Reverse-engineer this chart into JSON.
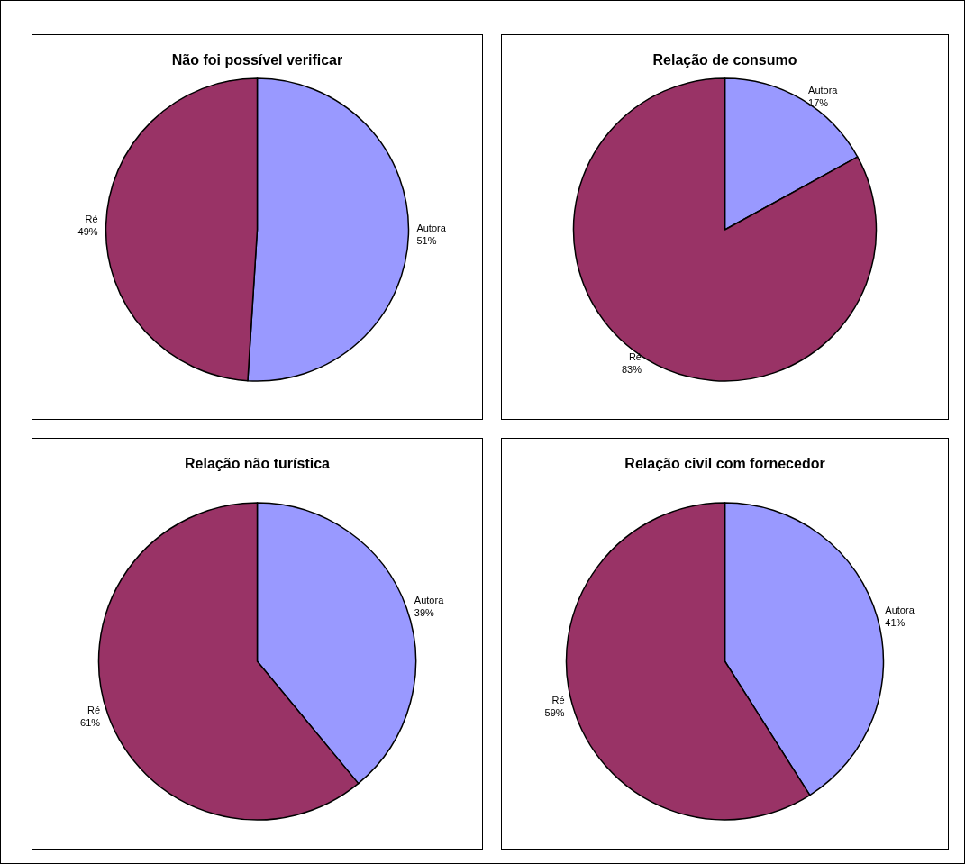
{
  "chart_data": [
    {
      "type": "pie",
      "title": "Não foi possível verificar",
      "categories": [
        "Autora",
        "Ré"
      ],
      "values": [
        51,
        49
      ],
      "value_labels": [
        "51%",
        "49%"
      ],
      "colors": [
        "#9999ff",
        "#993366"
      ]
    },
    {
      "type": "pie",
      "title": "Relação de consumo",
      "categories": [
        "Autora",
        "Ré"
      ],
      "values": [
        17,
        83
      ],
      "value_labels": [
        "17%",
        "83%"
      ],
      "colors": [
        "#9999ff",
        "#993366"
      ]
    },
    {
      "type": "pie",
      "title": "Relação não turística",
      "categories": [
        "Autora",
        "Ré"
      ],
      "values": [
        39,
        61
      ],
      "value_labels": [
        "39%",
        "61%"
      ],
      "colors": [
        "#9999ff",
        "#993366"
      ]
    },
    {
      "type": "pie",
      "title": "Relação civil com fornecedor",
      "categories": [
        "Autora",
        "Ré"
      ],
      "values": [
        41,
        59
      ],
      "value_labels": [
        "41%",
        "59%"
      ],
      "colors": [
        "#9999ff",
        "#993366"
      ]
    }
  ]
}
